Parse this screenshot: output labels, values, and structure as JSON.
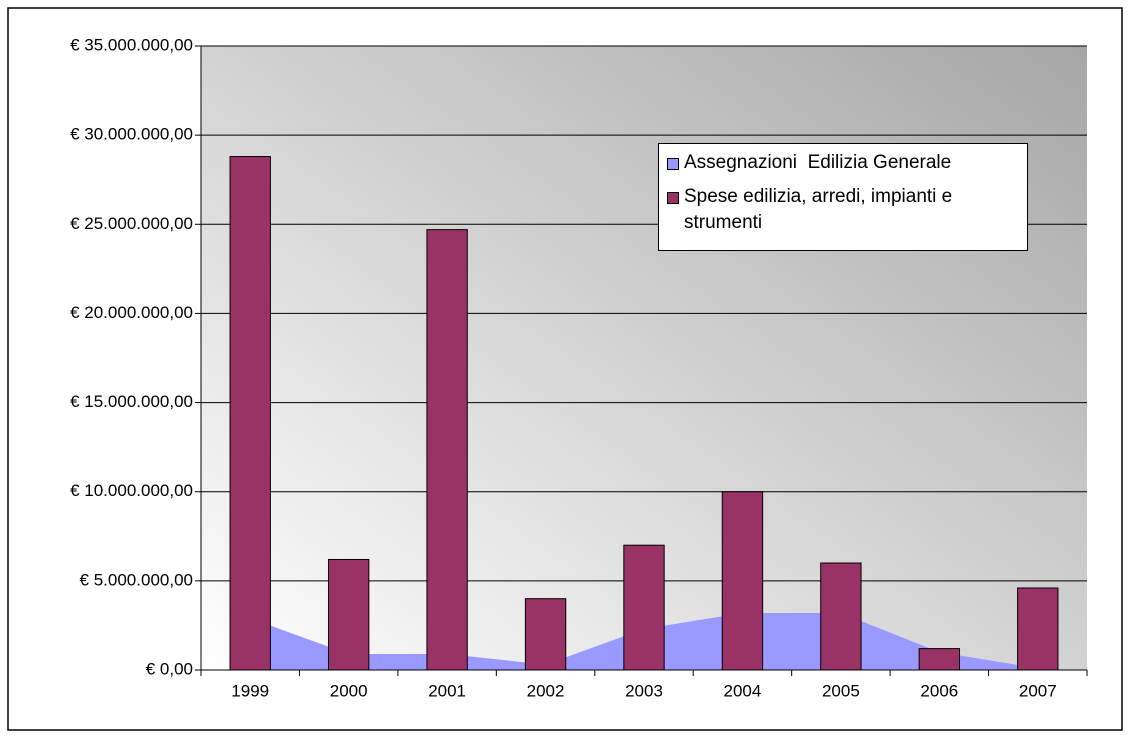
{
  "chart_data": {
    "type": "bar_area",
    "categories": [
      "1999",
      "2000",
      "2001",
      "2002",
      "2003",
      "2004",
      "2005",
      "2006",
      "2007"
    ],
    "series": [
      {
        "name": "Assegnazioni  Edilizia Generale",
        "type": "area",
        "color": "#9999ff",
        "values": [
          2900000,
          900000,
          900000,
          300000,
          2300000,
          3200000,
          3200000,
          1000000,
          100000
        ]
      },
      {
        "name": "Spese edilizia, arredi, impianti e strumenti",
        "type": "bar",
        "color": "#993366",
        "values": [
          28800000,
          6200000,
          24700000,
          4000000,
          7000000,
          10000000,
          6000000,
          1200000,
          4600000
        ]
      }
    ],
    "ylim": [
      0,
      35000000
    ],
    "yticks": [
      {
        "value": 0,
        "label": "€ 0,00"
      },
      {
        "value": 5000000,
        "label": "€ 5.000.000,00"
      },
      {
        "value": 10000000,
        "label": "€ 10.000.000,00"
      },
      {
        "value": 15000000,
        "label": "€ 15.000.000,00"
      },
      {
        "value": 20000000,
        "label": "€ 20.000.000,00"
      },
      {
        "value": 25000000,
        "label": "€ 25.000.000,00"
      },
      {
        "value": 30000000,
        "label": "€ 30.000.000,00"
      },
      {
        "value": 35000000,
        "label": "€ 35.000.000,00"
      }
    ],
    "grid": true
  }
}
